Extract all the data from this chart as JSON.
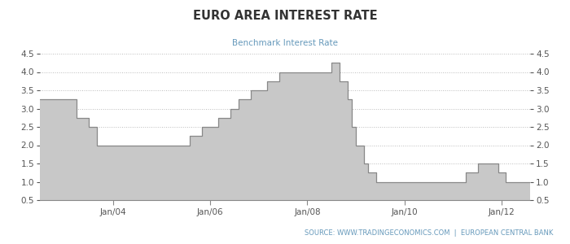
{
  "title": "EURO AREA INTEREST RATE",
  "subtitle": "Benchmark Interest Rate",
  "source_text": "SOURCE: WWW.TRADINGECONOMICS.COM  |  EUROPEAN CENTRAL BANK",
  "title_color": "#333333",
  "subtitle_color": "#6699bb",
  "source_color": "#6699bb",
  "fill_color_top": "#bbbbbb",
  "fill_color_bottom": "#e8e8e8",
  "line_color": "#888888",
  "background_color": "#ffffff",
  "grid_color": "#bbbbbb",
  "ylim": [
    0.5,
    4.5
  ],
  "yticks": [
    0.5,
    1.0,
    1.5,
    2.0,
    2.5,
    3.0,
    3.5,
    4.0,
    4.5
  ],
  "x_tick_labels": [
    "Jan/04",
    "Jan/06",
    "Jan/08",
    "Jan/10",
    "Jan/12"
  ],
  "x_tick_positions": [
    2004.0,
    2006.0,
    2008.0,
    2010.0,
    2012.0
  ],
  "xlim": [
    2002.5,
    2012.58
  ],
  "step_dates": [
    2002.5,
    2003.08,
    2003.25,
    2003.5,
    2003.67,
    2005.42,
    2005.58,
    2005.83,
    2006.0,
    2006.17,
    2006.42,
    2006.58,
    2006.83,
    2007.0,
    2007.17,
    2007.42,
    2008.5,
    2008.67,
    2008.83,
    2008.92,
    2009.0,
    2009.17,
    2009.25,
    2009.42,
    2011.0,
    2011.25,
    2011.5,
    2011.67,
    2011.92,
    2012.08,
    2012.58
  ],
  "step_values": [
    3.25,
    3.25,
    2.75,
    2.5,
    2.0,
    2.0,
    2.25,
    2.5,
    2.5,
    2.75,
    3.0,
    3.25,
    3.5,
    3.5,
    3.75,
    4.0,
    4.25,
    3.75,
    3.25,
    2.5,
    2.0,
    1.5,
    1.25,
    1.0,
    1.0,
    1.25,
    1.5,
    1.5,
    1.25,
    1.0,
    1.0
  ]
}
